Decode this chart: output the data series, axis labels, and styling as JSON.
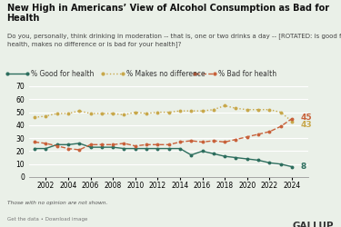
{
  "title": "New High in Americans’ View of Alcohol Consumption as Bad for Health",
  "subtitle": "Do you, personally, think drinking in moderation -- that is, one or two drinks a day -- [ROTATED: is good for your\nhealth, makes no difference or is bad for your health]?",
  "footnote": "Those with no opinion are not shown.",
  "footer_link": "Get the data • Download image",
  "branding": "GALLUP",
  "background_color": "#eaf0e8",
  "good_for_health": {
    "label": "% Good for health",
    "color": "#2d6e5e",
    "style": "solid",
    "marker": "o",
    "years": [
      2001,
      2002,
      2003,
      2004,
      2005,
      2006,
      2007,
      2008,
      2009,
      2010,
      2011,
      2012,
      2013,
      2014,
      2015,
      2016,
      2017,
      2018,
      2019,
      2020,
      2021,
      2022,
      2023,
      2024
    ],
    "values": [
      22,
      22,
      25,
      25,
      26,
      23,
      23,
      23,
      22,
      22,
      22,
      22,
      22,
      22,
      17,
      20,
      18,
      16,
      15,
      14,
      13,
      11,
      10,
      8
    ]
  },
  "makes_no_difference": {
    "label": "% Makes no difference",
    "color": "#c8a84b",
    "style": "dotted",
    "marker": "o",
    "years": [
      2001,
      2002,
      2003,
      2004,
      2005,
      2006,
      2007,
      2008,
      2009,
      2010,
      2011,
      2012,
      2013,
      2014,
      2015,
      2016,
      2017,
      2018,
      2019,
      2020,
      2021,
      2022,
      2023,
      2024
    ],
    "values": [
      46,
      47,
      49,
      49,
      51,
      49,
      49,
      49,
      48,
      50,
      49,
      50,
      50,
      51,
      51,
      51,
      52,
      55,
      53,
      52,
      52,
      52,
      50,
      43
    ]
  },
  "bad_for_health": {
    "label": "% Bad for health",
    "color": "#c8613a",
    "style": "dashed",
    "marker": "o",
    "years": [
      2001,
      2002,
      2003,
      2004,
      2005,
      2006,
      2007,
      2008,
      2009,
      2010,
      2011,
      2012,
      2013,
      2014,
      2015,
      2016,
      2017,
      2018,
      2019,
      2020,
      2021,
      2022,
      2023,
      2024
    ],
    "values": [
      27,
      26,
      24,
      22,
      21,
      25,
      25,
      25,
      26,
      24,
      25,
      25,
      25,
      27,
      28,
      27,
      28,
      27,
      29,
      31,
      33,
      35,
      39,
      45
    ]
  },
  "xlim": [
    2000.5,
    2025.5
  ],
  "ylim": [
    0,
    70
  ],
  "yticks": [
    0,
    10,
    20,
    30,
    40,
    50,
    60,
    70
  ],
  "xticks": [
    2002,
    2004,
    2006,
    2008,
    2010,
    2012,
    2014,
    2016,
    2018,
    2020,
    2022,
    2024
  ],
  "title_fontsize": 7.0,
  "subtitle_fontsize": 5.0,
  "axis_fontsize": 5.5,
  "legend_fontsize": 5.5,
  "label_fontsize": 6.5,
  "end_labels": {
    "good": "8",
    "no_diff": "43",
    "bad": "45"
  },
  "end_offsets": {
    "good": [
      0,
      0
    ],
    "no_diff": [
      0,
      -2.5
    ],
    "bad": [
      0,
      2.5
    ]
  }
}
